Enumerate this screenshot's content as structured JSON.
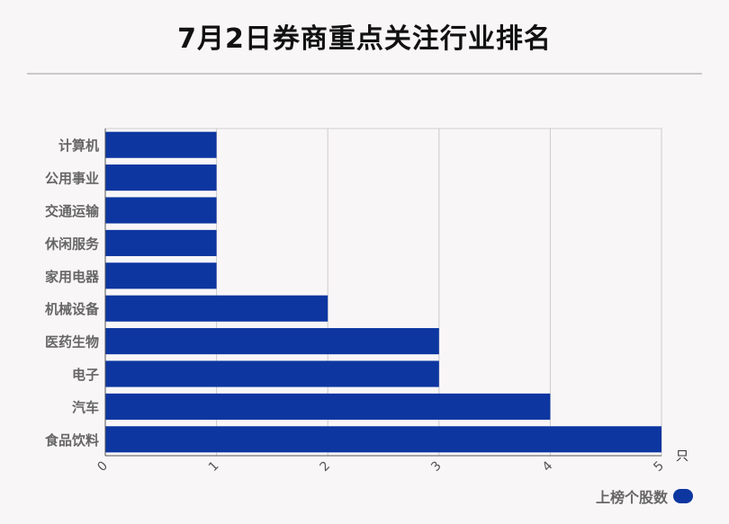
{
  "title": "7月2日券商重点关注行业排名",
  "chart_data": {
    "type": "bar",
    "orientation": "horizontal",
    "categories": [
      "计算机",
      "公用事业",
      "交通运输",
      "休闲服务",
      "家用电器",
      "机械设备",
      "医药生物",
      "电子",
      "汽车",
      "食品饮料"
    ],
    "series": [
      {
        "name": "上榜个股数",
        "values": [
          1,
          1,
          1,
          1,
          1,
          2,
          3,
          3,
          4,
          5
        ]
      }
    ],
    "xlim": [
      0,
      5
    ],
    "xticks": [
      "0",
      "1",
      "2",
      "3",
      "4",
      "5"
    ],
    "xunit": "只",
    "grid": true,
    "legend_position": "bottom-right",
    "bar_color": "#0d36a0"
  }
}
